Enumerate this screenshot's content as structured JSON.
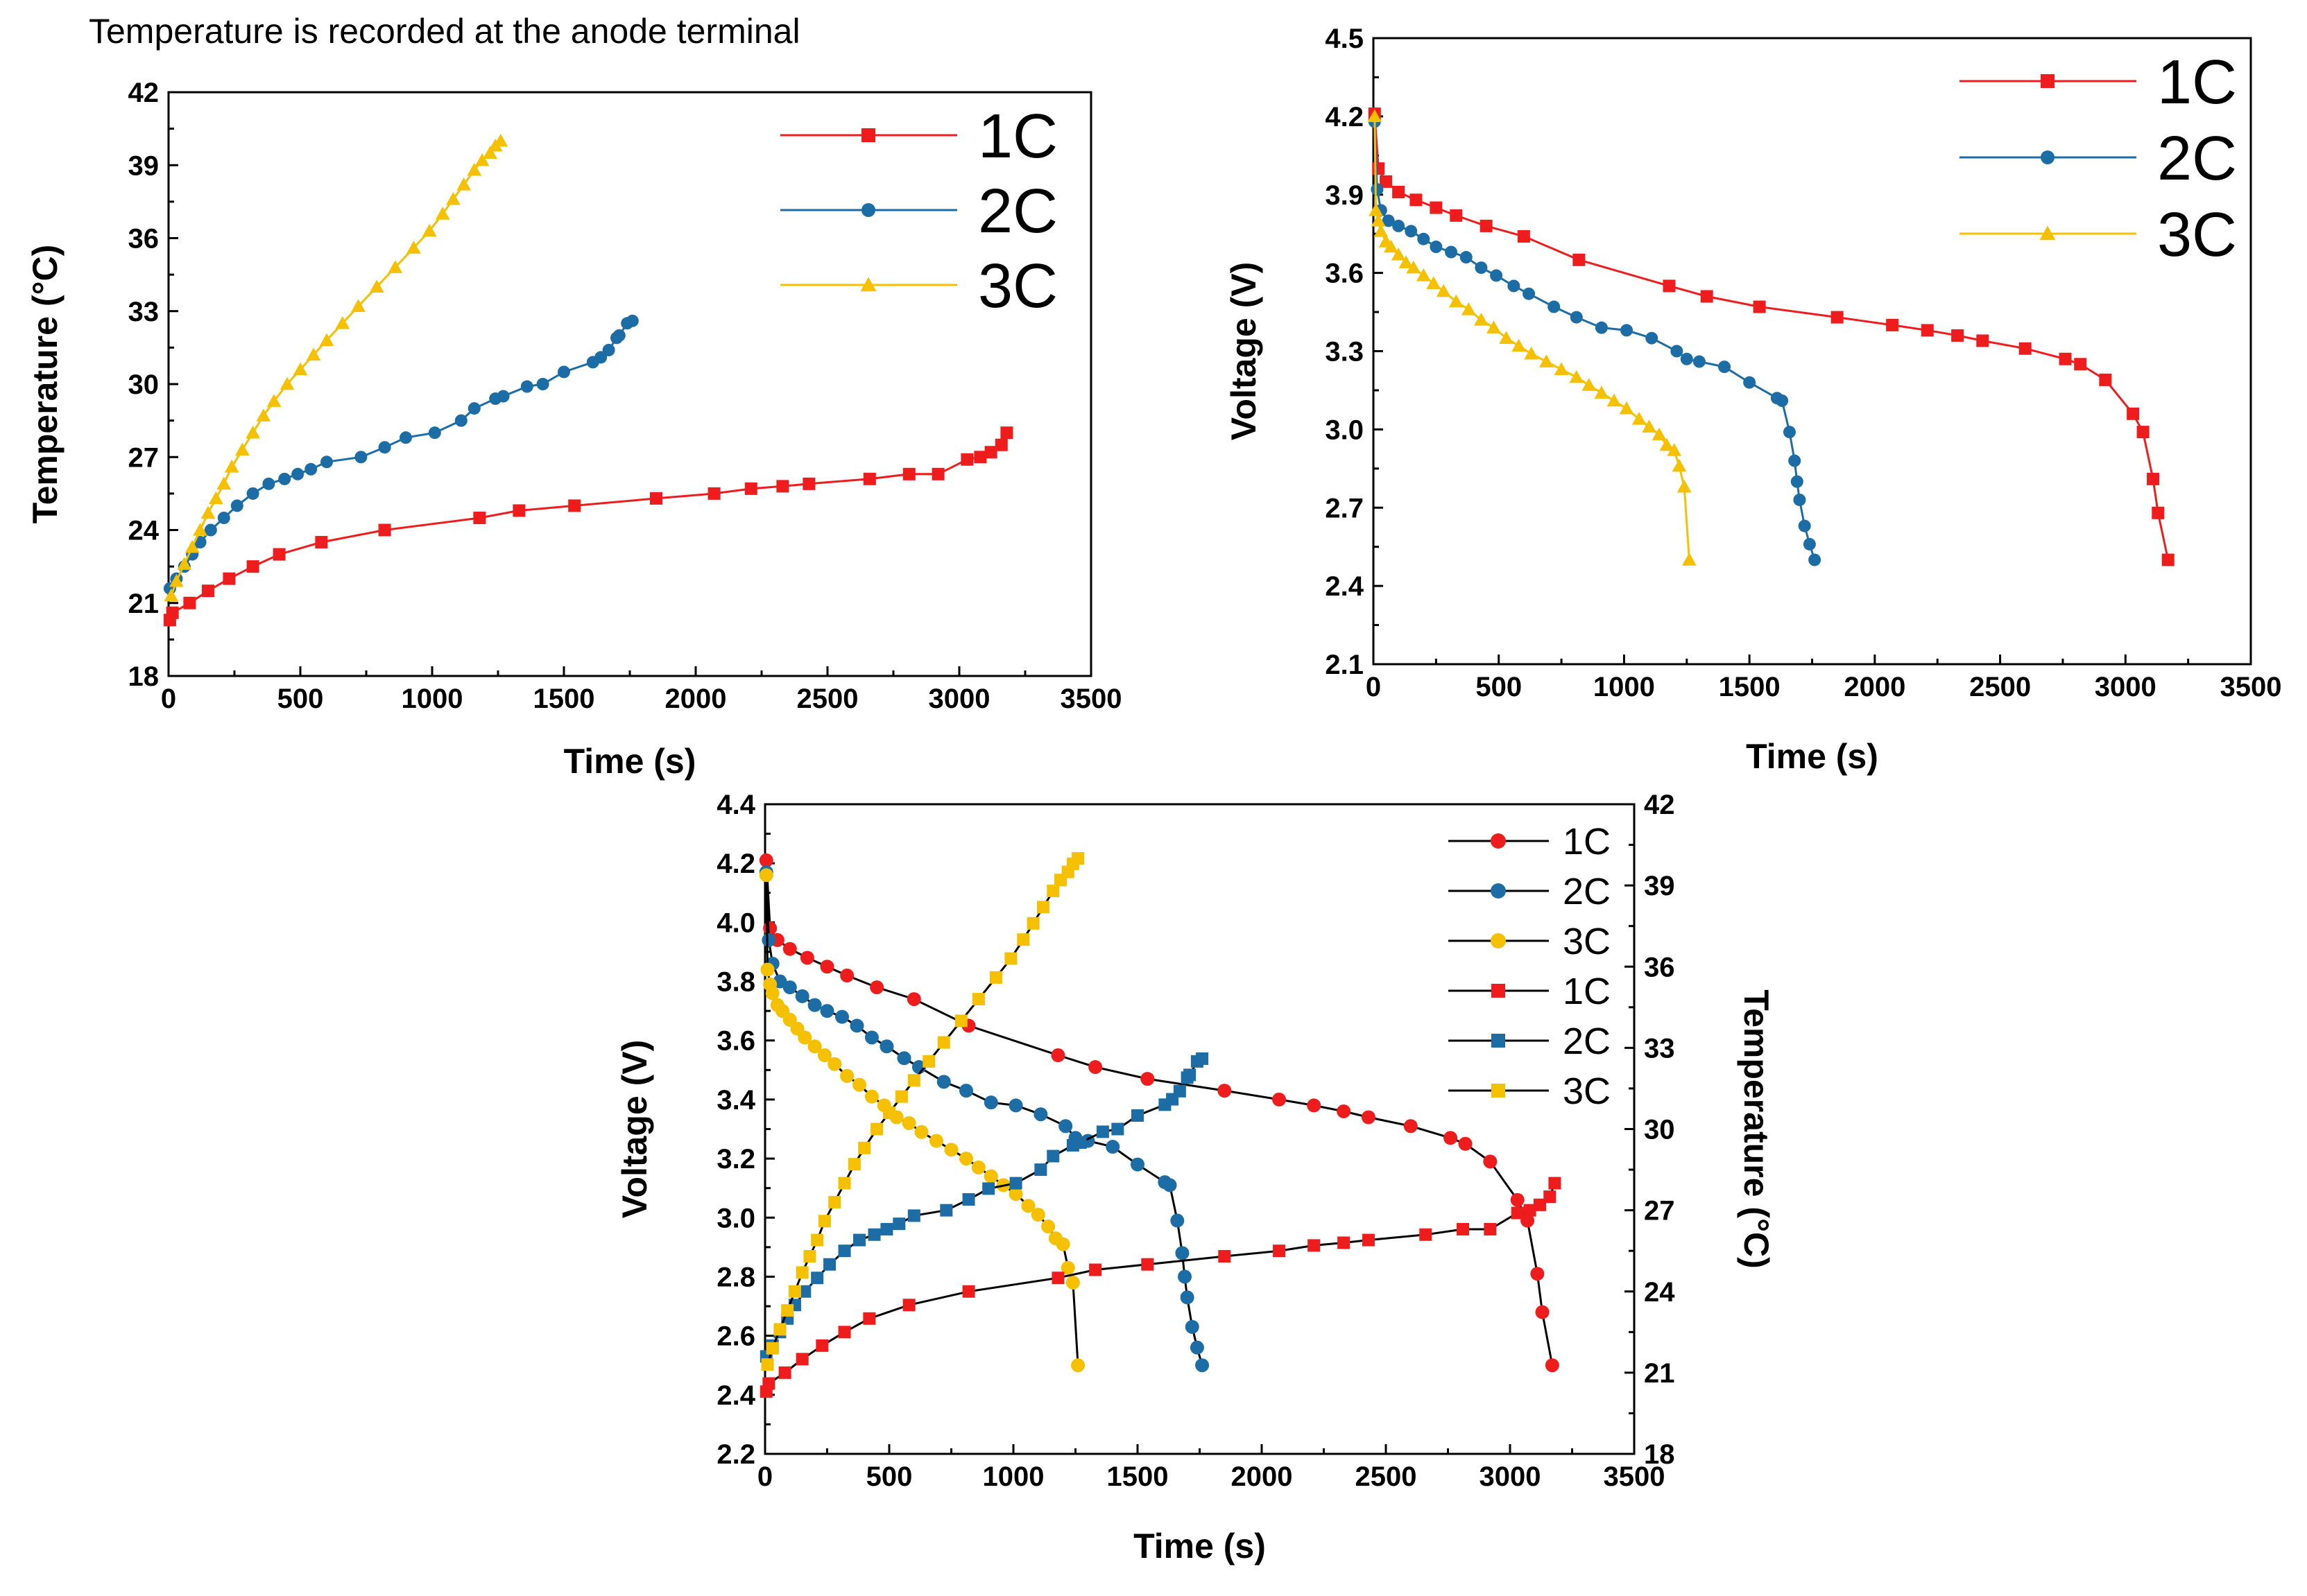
{
  "colors": {
    "1C": "#ee1c1c",
    "2C": "#1c6ca5",
    "3C": "#f5c000",
    "axis": "#000000"
  },
  "chart_data": [
    {
      "type": "line",
      "id": "temperature-chart",
      "annotation": "Temperature is recorded at the anode terminal",
      "xlabel": "Time (s)",
      "ylabel": "Temperature (°C)",
      "xlim": [
        0,
        3500
      ],
      "ylim": [
        18,
        42
      ],
      "xticks": [
        "0",
        "500",
        "1000",
        "1500",
        "2000",
        "2500",
        "3000",
        "3500"
      ],
      "yticks": [
        "18",
        "21",
        "24",
        "27",
        "30",
        "33",
        "36",
        "39",
        "42"
      ],
      "legend_position": "top-right",
      "series": [
        {
          "name": "1C",
          "color": "#ee1c1c",
          "marker": "square",
          "x": [
            5,
            15,
            80,
            150,
            230,
            320,
            420,
            580,
            820,
            1180,
            1330,
            1540,
            1850,
            2070,
            2210,
            2330,
            2430,
            2660,
            2810,
            2920,
            3030,
            3080,
            3120,
            3160,
            3180
          ],
          "y": [
            20.3,
            20.6,
            21.0,
            21.5,
            22.0,
            22.5,
            23.0,
            23.5,
            24.0,
            24.5,
            24.8,
            25.0,
            25.3,
            25.5,
            25.7,
            25.8,
            25.9,
            26.1,
            26.3,
            26.3,
            26.9,
            27.0,
            27.2,
            27.5,
            28.0
          ]
        },
        {
          "name": "2C",
          "color": "#1c6ca5",
          "marker": "circle",
          "x": [
            5,
            30,
            60,
            90,
            120,
            160,
            210,
            260,
            320,
            380,
            440,
            490,
            540,
            600,
            730,
            820,
            900,
            1010,
            1110,
            1160,
            1240,
            1270,
            1360,
            1420,
            1500,
            1610,
            1640,
            1670,
            1700,
            1710,
            1740,
            1760
          ],
          "y": [
            21.6,
            22.0,
            22.5,
            23.0,
            23.5,
            24.0,
            24.5,
            25.0,
            25.5,
            25.9,
            26.1,
            26.3,
            26.5,
            26.8,
            27.0,
            27.4,
            27.8,
            28.0,
            28.5,
            29.0,
            29.4,
            29.5,
            29.9,
            30.0,
            30.5,
            30.9,
            31.1,
            31.4,
            31.9,
            32.0,
            32.5,
            32.6
          ],
          "y_note": "temperature"
        },
        {
          "name": "3C",
          "color": "#f5c000",
          "marker": "triangle",
          "x": [
            10,
            30,
            60,
            90,
            120,
            150,
            180,
            210,
            240,
            280,
            320,
            360,
            400,
            450,
            500,
            550,
            600,
            660,
            720,
            790,
            860,
            930,
            990,
            1040,
            1080,
            1120,
            1160,
            1190,
            1220,
            1240,
            1260
          ],
          "y": [
            21.3,
            21.9,
            22.6,
            23.3,
            24.0,
            24.7,
            25.3,
            25.9,
            26.6,
            27.3,
            28.0,
            28.7,
            29.3,
            30.0,
            30.6,
            31.2,
            31.8,
            32.5,
            33.2,
            34.0,
            34.8,
            35.6,
            36.3,
            37.0,
            37.6,
            38.2,
            38.8,
            39.2,
            39.5,
            39.8,
            40.0
          ]
        }
      ]
    },
    {
      "type": "line",
      "id": "voltage-chart",
      "xlabel": "Time (s)",
      "ylabel": "Voltage (V)",
      "xlim": [
        0,
        3500
      ],
      "ylim": [
        2.1,
        4.5
      ],
      "xticks": [
        "0",
        "500",
        "1000",
        "1500",
        "2000",
        "2500",
        "3000",
        "3500"
      ],
      "yticks": [
        "2.1",
        "2.4",
        "2.7",
        "3.0",
        "3.3",
        "3.6",
        "3.9",
        "4.2",
        "4.5"
      ],
      "legend_position": "top-right",
      "series": [
        {
          "name": "1C",
          "color": "#ee1c1c",
          "marker": "square",
          "x": [
            5,
            20,
            50,
            100,
            170,
            250,
            330,
            450,
            600,
            820,
            1180,
            1330,
            1540,
            1850,
            2070,
            2210,
            2330,
            2430,
            2600,
            2760,
            2820,
            2920,
            3030,
            3070,
            3110,
            3130,
            3170
          ],
          "y": [
            4.21,
            4.0,
            3.95,
            3.91,
            3.88,
            3.85,
            3.82,
            3.78,
            3.74,
            3.65,
            3.55,
            3.51,
            3.47,
            3.43,
            3.4,
            3.38,
            3.36,
            3.34,
            3.31,
            3.27,
            3.25,
            3.19,
            3.06,
            2.99,
            2.81,
            2.68,
            2.5
          ]
        },
        {
          "name": "2C",
          "color": "#1c6ca5",
          "marker": "circle",
          "x": [
            5,
            15,
            30,
            60,
            100,
            150,
            200,
            250,
            310,
            370,
            430,
            490,
            560,
            620,
            720,
            810,
            910,
            1010,
            1110,
            1210,
            1250,
            1300,
            1400,
            1500,
            1610,
            1630,
            1660,
            1680,
            1690,
            1700,
            1720,
            1740,
            1760
          ],
          "y": [
            4.18,
            3.92,
            3.84,
            3.8,
            3.78,
            3.76,
            3.73,
            3.7,
            3.68,
            3.66,
            3.62,
            3.59,
            3.55,
            3.52,
            3.47,
            3.43,
            3.39,
            3.38,
            3.35,
            3.3,
            3.27,
            3.26,
            3.24,
            3.18,
            3.12,
            3.11,
            2.99,
            2.88,
            2.8,
            2.73,
            2.63,
            2.56,
            2.5
          ]
        },
        {
          "name": "3C",
          "color": "#f5c000",
          "marker": "triangle",
          "x": [
            5,
            10,
            20,
            30,
            50,
            70,
            100,
            130,
            160,
            200,
            240,
            280,
            330,
            380,
            430,
            480,
            530,
            580,
            630,
            690,
            750,
            810,
            860,
            910,
            960,
            1010,
            1060,
            1100,
            1140,
            1170,
            1200,
            1220,
            1240,
            1260
          ],
          "y": [
            4.2,
            3.84,
            3.8,
            3.76,
            3.72,
            3.7,
            3.67,
            3.64,
            3.62,
            3.59,
            3.56,
            3.53,
            3.49,
            3.46,
            3.42,
            3.39,
            3.35,
            3.32,
            3.29,
            3.26,
            3.23,
            3.2,
            3.17,
            3.14,
            3.11,
            3.08,
            3.04,
            3.01,
            2.98,
            2.94,
            2.92,
            2.86,
            2.78,
            2.5
          ]
        }
      ]
    },
    {
      "type": "line",
      "id": "combined-chart",
      "xlabel": "Time (s)",
      "ylabel": "Voltage (V)",
      "y2label": "Temperature (°C)",
      "xlim": [
        0,
        3500
      ],
      "ylim": [
        2.2,
        4.4
      ],
      "y2lim": [
        18,
        42
      ],
      "xticks": [
        "0",
        "500",
        "1000",
        "1500",
        "2000",
        "2500",
        "3000",
        "3500"
      ],
      "yticks": [
        "2.2",
        "2.4",
        "2.6",
        "2.8",
        "3.0",
        "3.2",
        "3.4",
        "3.6",
        "3.8",
        "4.0",
        "4.2",
        "4.4"
      ],
      "y2ticks": [
        "18",
        "21",
        "24",
        "27",
        "30",
        "33",
        "36",
        "39",
        "42"
      ],
      "legend_position": "top-right",
      "legend": [
        "1C",
        "2C",
        "3C",
        "1C",
        "2C",
        "3C"
      ],
      "voltage_series": [
        {
          "name": "1C",
          "color": "#ee1c1c",
          "marker": "circle",
          "x": [
            5,
            20,
            50,
            100,
            170,
            250,
            330,
            450,
            600,
            820,
            1180,
            1330,
            1540,
            1850,
            2070,
            2210,
            2330,
            2430,
            2600,
            2760,
            2820,
            2920,
            3030,
            3070,
            3110,
            3130,
            3170
          ],
          "y": [
            4.21,
            3.98,
            3.94,
            3.91,
            3.88,
            3.85,
            3.82,
            3.78,
            3.74,
            3.65,
            3.55,
            3.51,
            3.47,
            3.43,
            3.4,
            3.38,
            3.36,
            3.34,
            3.31,
            3.27,
            3.25,
            3.19,
            3.06,
            2.99,
            2.81,
            2.68,
            2.5
          ]
        },
        {
          "name": "2C",
          "color": "#1c6ca5",
          "marker": "circle",
          "x": [
            5,
            15,
            30,
            60,
            100,
            150,
            200,
            250,
            310,
            370,
            430,
            490,
            560,
            620,
            720,
            810,
            910,
            1010,
            1110,
            1210,
            1250,
            1300,
            1400,
            1500,
            1610,
            1630,
            1660,
            1680,
            1690,
            1700,
            1720,
            1740,
            1760
          ],
          "y": [
            4.17,
            3.94,
            3.86,
            3.8,
            3.78,
            3.75,
            3.72,
            3.7,
            3.68,
            3.65,
            3.61,
            3.58,
            3.54,
            3.51,
            3.46,
            3.43,
            3.39,
            3.38,
            3.35,
            3.31,
            3.27,
            3.26,
            3.24,
            3.18,
            3.12,
            3.11,
            2.99,
            2.88,
            2.8,
            2.73,
            2.63,
            2.56,
            2.5
          ]
        },
        {
          "name": "3C",
          "color": "#f5c000",
          "marker": "circle",
          "x": [
            5,
            10,
            20,
            30,
            50,
            70,
            100,
            130,
            160,
            200,
            240,
            280,
            330,
            380,
            430,
            480,
            530,
            580,
            630,
            690,
            750,
            810,
            860,
            910,
            960,
            1010,
            1060,
            1100,
            1140,
            1170,
            1200,
            1220,
            1240,
            1260
          ],
          "y": [
            4.16,
            3.84,
            3.79,
            3.76,
            3.72,
            3.7,
            3.67,
            3.64,
            3.61,
            3.58,
            3.55,
            3.52,
            3.48,
            3.45,
            3.41,
            3.38,
            3.34,
            3.32,
            3.29,
            3.26,
            3.23,
            3.2,
            3.17,
            3.14,
            3.11,
            3.08,
            3.04,
            3.01,
            2.97,
            2.93,
            2.91,
            2.83,
            2.78,
            2.5
          ]
        }
      ],
      "temperature_series": [
        {
          "name": "1C",
          "color": "#ee1c1c",
          "marker": "square",
          "x": [
            5,
            15,
            80,
            150,
            230,
            320,
            420,
            580,
            820,
            1180,
            1330,
            1540,
            1850,
            2070,
            2210,
            2330,
            2430,
            2660,
            2810,
            2920,
            3030,
            3080,
            3120,
            3160,
            3180
          ],
          "y": [
            20.3,
            20.6,
            21.0,
            21.5,
            22.0,
            22.5,
            23.0,
            23.5,
            24.0,
            24.5,
            24.8,
            25.0,
            25.3,
            25.5,
            25.7,
            25.8,
            25.9,
            26.1,
            26.3,
            26.3,
            26.9,
            27.0,
            27.2,
            27.5,
            28.0
          ]
        },
        {
          "name": "2C",
          "color": "#1c6ca5",
          "marker": "square",
          "x": [
            5,
            30,
            60,
            90,
            120,
            160,
            210,
            260,
            320,
            380,
            440,
            490,
            540,
            600,
            730,
            820,
            900,
            1010,
            1110,
            1160,
            1240,
            1270,
            1360,
            1420,
            1500,
            1610,
            1640,
            1670,
            1700,
            1710,
            1740,
            1760
          ],
          "y": [
            21.6,
            22.0,
            22.5,
            23.0,
            23.5,
            24.0,
            24.5,
            25.0,
            25.5,
            25.9,
            26.1,
            26.3,
            26.5,
            26.8,
            27.0,
            27.4,
            27.8,
            28.0,
            28.5,
            29.0,
            29.4,
            29.5,
            29.9,
            30.0,
            30.5,
            30.9,
            31.1,
            31.4,
            31.9,
            32.0,
            32.5,
            32.6
          ]
        },
        {
          "name": "3C",
          "color": "#f5c000",
          "marker": "square",
          "x": [
            10,
            30,
            60,
            90,
            120,
            150,
            180,
            210,
            240,
            280,
            320,
            360,
            400,
            450,
            500,
            550,
            600,
            660,
            720,
            790,
            860,
            930,
            990,
            1040,
            1080,
            1120,
            1160,
            1190,
            1220,
            1240,
            1260
          ],
          "y": [
            21.3,
            21.9,
            22.6,
            23.3,
            24.0,
            24.7,
            25.3,
            25.9,
            26.6,
            27.3,
            28.0,
            28.7,
            29.3,
            30.0,
            30.6,
            31.2,
            31.8,
            32.5,
            33.2,
            34.0,
            34.8,
            35.6,
            36.3,
            37.0,
            37.6,
            38.2,
            38.8,
            39.2,
            39.5,
            39.8,
            40.0
          ]
        }
      ]
    }
  ]
}
